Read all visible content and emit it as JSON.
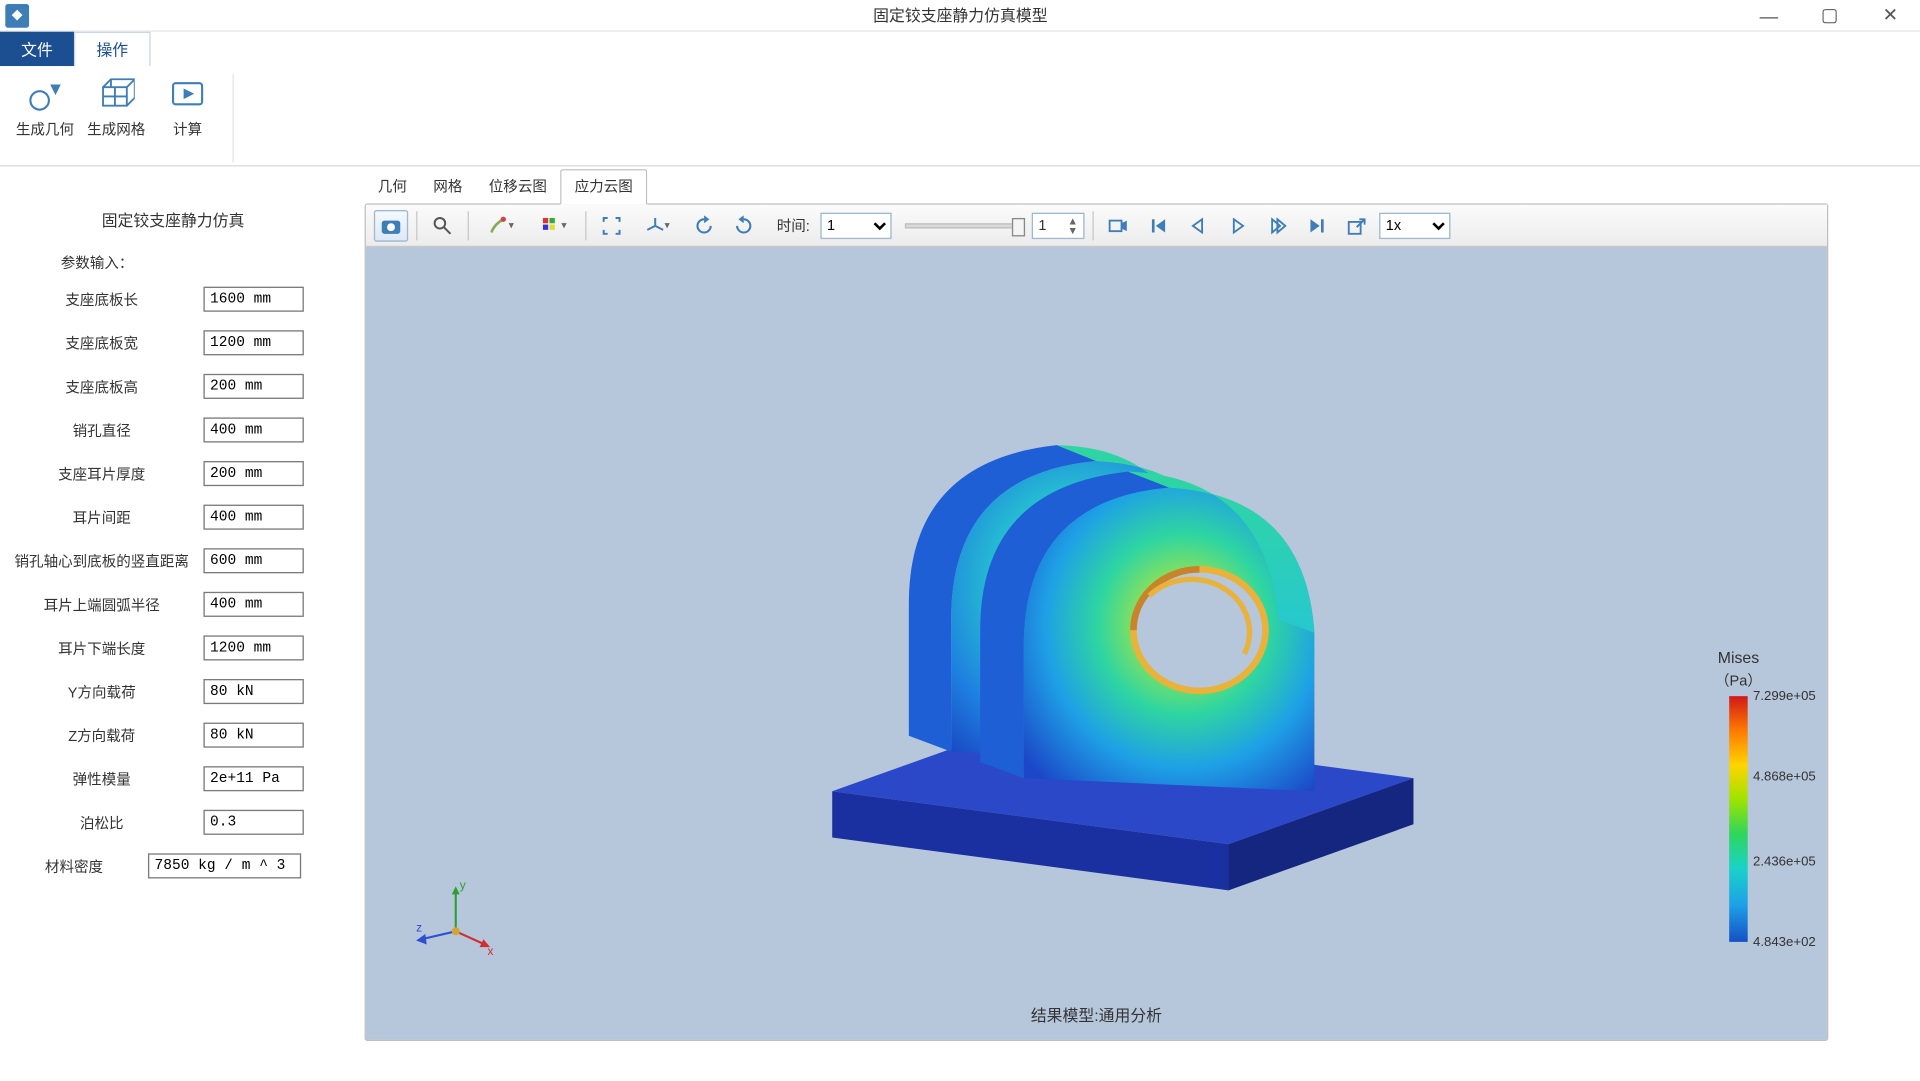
{
  "window": {
    "title": "固定铰支座静力仿真模型"
  },
  "menu": {
    "file": "文件",
    "operate": "操作"
  },
  "ribbon": {
    "gen_geom": "生成几何",
    "gen_mesh": "生成网格",
    "compute": "计算"
  },
  "panel": {
    "title": "固定铰支座静力仿真",
    "section": "参数输入：",
    "rows": [
      {
        "label": "支座底板长",
        "value": "1600 mm"
      },
      {
        "label": "支座底板宽",
        "value": "1200 mm"
      },
      {
        "label": "支座底板高",
        "value": "200 mm"
      },
      {
        "label": "销孔直径",
        "value": "400 mm"
      },
      {
        "label": "支座耳片厚度",
        "value": "200 mm"
      },
      {
        "label": "耳片间距",
        "value": "400 mm"
      },
      {
        "label": "销孔轴心到底板的竖直距离",
        "value": "600 mm"
      },
      {
        "label": "耳片上端圆弧半径",
        "value": "400 mm"
      },
      {
        "label": "耳片下端长度",
        "value": "1200 mm"
      },
      {
        "label": "Y方向载荷",
        "value": "80 kN"
      },
      {
        "label": "Z方向载荷",
        "value": "80 kN"
      },
      {
        "label": "弹性模量",
        "value": "2e+11 Pa"
      },
      {
        "label": "泊松比",
        "value": "0.3"
      }
    ],
    "density_label": "材料密度",
    "density_value": "7850 kg / m ^ 3"
  },
  "viewtabs": {
    "t1": "几何",
    "t2": "网格",
    "t3": "位移云图",
    "t4": "应力云图"
  },
  "vtoolbar": {
    "time_label": "时间:",
    "time_sel": "1",
    "frame": "1",
    "speed": "1x"
  },
  "canvas": {
    "bg": "#b6c6db",
    "footer": "结果模型:通用分析",
    "triad": {
      "x": "x",
      "y": "y",
      "z": "z",
      "xcolor": "#d12f2f",
      "ycolor": "#2f9e2f",
      "zcolor": "#2f4fd1"
    }
  },
  "legend": {
    "title": "Mises",
    "unit": "（Pa）",
    "ticks": [
      {
        "pos": 0,
        "label": "7.299e+05"
      },
      {
        "pos": 0.33,
        "label": "4.868e+05"
      },
      {
        "pos": 0.67,
        "label": "2.436e+05"
      },
      {
        "pos": 1,
        "label": "4.843e+02"
      }
    ]
  },
  "model_colors": {
    "base_top": "#2340c0",
    "base_front": "#1a2fa0",
    "base_side": "#142680",
    "ear_low": "#1e5fd6",
    "ear_mid": "#27c8cf",
    "ear_hi": "#5fe06a",
    "ear_hot": "#f5c63a",
    "ear_edge": "#3a6a46",
    "hole_rim": "#e9b23a",
    "hole_in": "#b6c6db"
  }
}
